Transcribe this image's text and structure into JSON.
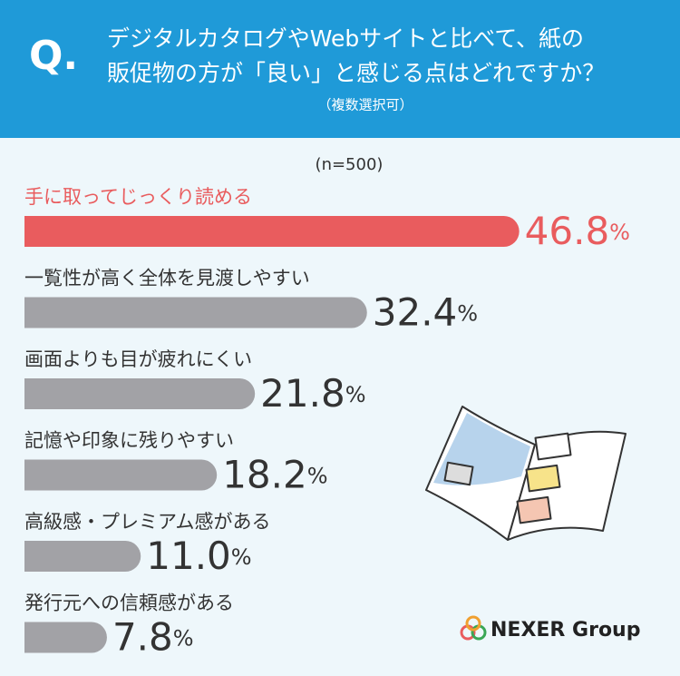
{
  "chart_data": {
    "type": "bar",
    "header": {
      "mark": "Q.",
      "question": [
        "デジタルカタログやWebサイトと比べて、紙の",
        "販促物の方が「良い」と感じる点はどれですか？"
      ],
      "note": "（複数選択可）"
    },
    "sample": "(n=500)",
    "categories": [
      "手に取ってじっくり読める",
      "一覧性が高く全体を見渡しやすい",
      "画面よりも目が疲れにくい",
      "記憶や印象に残りやすい",
      "高級感・プレミアム感がある",
      "発行元への信頼感がある"
    ],
    "values": [
      46.8,
      32.4,
      21.8,
      18.2,
      11.0,
      7.8
    ],
    "value_labels": [
      "46.8%",
      "32.4%",
      "21.8%",
      "18.2%",
      "11.0%",
      "7.8%"
    ],
    "colors": [
      "#e95c5e",
      "#a2a2a6",
      "#a2a2a6",
      "#a2a2a6",
      "#a2a2a6",
      "#a2a2a6"
    ],
    "xlim": [
      0,
      47
    ],
    "logo": "NEXER Group"
  }
}
